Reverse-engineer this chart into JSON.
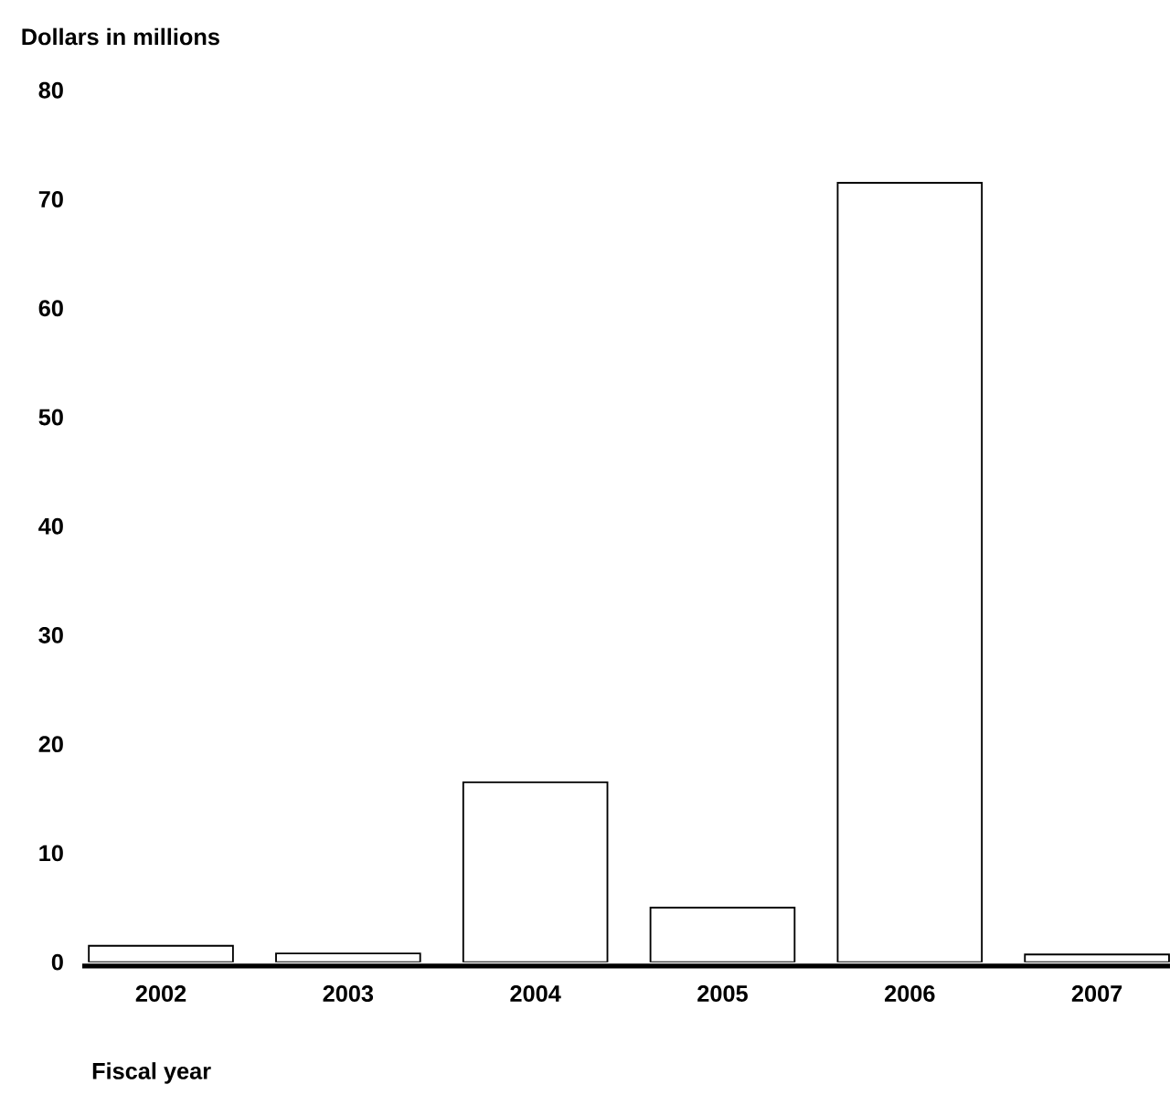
{
  "chart_data": {
    "type": "bar",
    "ylabel": "Dollars in millions",
    "xlabel": "Fiscal year",
    "categories": [
      "2002",
      "2003",
      "2004",
      "2005",
      "2006",
      "2007"
    ],
    "values": [
      1.5,
      0.8,
      16.5,
      5,
      71.5,
      0.7
    ],
    "color": "#ffffff",
    "ylim": [
      0,
      80
    ],
    "yticks": [
      0,
      10,
      20,
      30,
      40,
      50,
      60,
      70,
      80
    ]
  }
}
